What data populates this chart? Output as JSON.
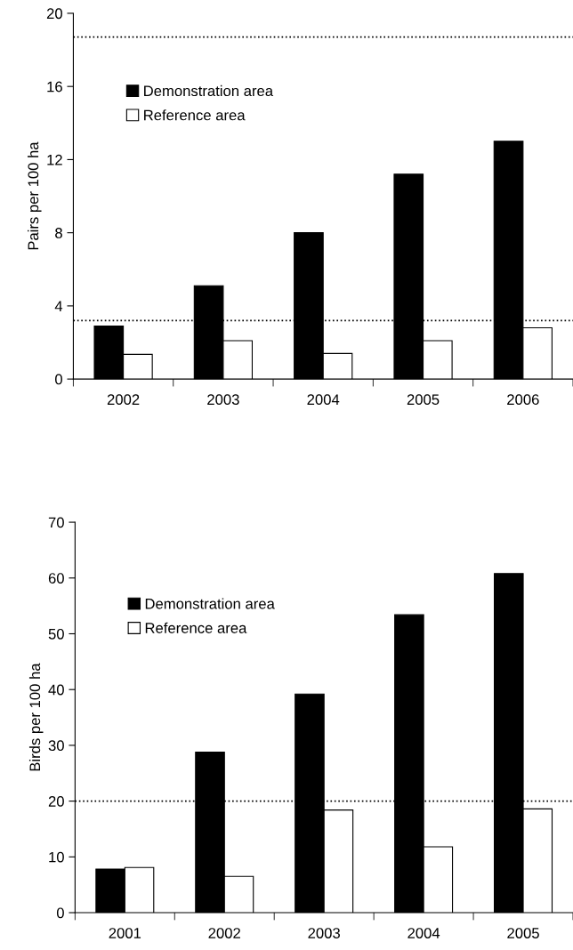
{
  "chart_data": [
    {
      "type": "bar",
      "ylabel": "Pairs per 100 ha",
      "categories": [
        "2002",
        "2003",
        "2004",
        "2005",
        "2006"
      ],
      "series": [
        {
          "name": "Demonstration area",
          "color": "#000000",
          "values": [
            2.9,
            5.1,
            8.0,
            11.2,
            13.0
          ]
        },
        {
          "name": "Reference area",
          "color": "#ffffff",
          "values": [
            1.35,
            2.1,
            1.4,
            2.1,
            2.8
          ]
        }
      ],
      "ylim": [
        0,
        20
      ],
      "yticks": [
        0,
        4,
        8,
        12,
        16,
        20
      ],
      "grid": false,
      "legend": "top left",
      "ref_lines": [
        {
          "axis": "y",
          "value": 18.7,
          "line_style": "dotted"
        },
        {
          "axis": "y",
          "value": 3.2,
          "line_style": "dotted"
        }
      ]
    },
    {
      "type": "bar",
      "ylabel": "Birds per 100 ha",
      "categories": [
        "2001",
        "2002",
        "2003",
        "2004",
        "2005"
      ],
      "series": [
        {
          "name": "Demonstration area",
          "color": "#000000",
          "values": [
            7.8,
            28.8,
            39.2,
            53.4,
            60.8
          ]
        },
        {
          "name": "Reference area",
          "color": "#ffffff",
          "values": [
            8.1,
            6.5,
            18.4,
            11.8,
            18.6
          ]
        }
      ],
      "ylim": [
        0,
        70
      ],
      "yticks": [
        0,
        10,
        20,
        30,
        40,
        50,
        60,
        70
      ],
      "grid": false,
      "legend": "top left",
      "ref_lines": [
        {
          "axis": "y",
          "value": 20,
          "line_style": "dotted"
        }
      ]
    }
  ]
}
